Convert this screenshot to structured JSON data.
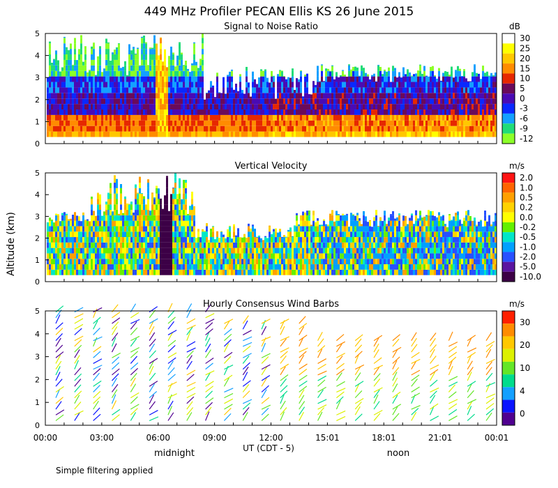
{
  "title": "449 MHz Profiler PECAN Ellis KS 26 June 2015",
  "ylabel": "Altitude (km)",
  "xlabel": "UT  (CDT - 5)",
  "x_ticks": [
    "00:00",
    "03:00",
    "06:00",
    "09:00",
    "12:00",
    "15:01",
    "18:01",
    "21:01",
    "00:01"
  ],
  "local_labels": {
    "midnight": "midnight",
    "noon": "noon"
  },
  "footnote": "Simple filtering applied",
  "chart_data": [
    {
      "type": "heatmap",
      "title": "Signal to Noise Ratio",
      "units": "dB",
      "ylim": [
        0,
        5
      ],
      "y_ticks": [
        "0",
        "1",
        "2",
        "3",
        "4",
        "5"
      ],
      "colorbar": {
        "labels": [
          "30",
          "25",
          "20",
          "15",
          "10",
          "5",
          "0",
          "-3",
          "-6",
          "-9",
          "-12"
        ],
        "colors": [
          "#ffffff",
          "#ffff00",
          "#ffc800",
          "#ff8c00",
          "#e62800",
          "#6a0a5a",
          "#4a0ab4",
          "#0a28ff",
          "#14a0ff",
          "#20dc78",
          "#8cff28"
        ]
      }
    },
    {
      "type": "heatmap",
      "title": "Vertical Velocity",
      "units": "m/s",
      "ylim": [
        0,
        5
      ],
      "y_ticks": [
        "0",
        "1",
        "2",
        "3",
        "4",
        "5"
      ],
      "colorbar": {
        "labels": [
          "2.0",
          "1.0",
          "0.5",
          "0.2",
          "0.0",
          "-0.2",
          "-0.5",
          "-1.0",
          "-2.0",
          "-5.0",
          "-10.0"
        ],
        "colors": [
          "#ff1414",
          "#ff6400",
          "#ffa000",
          "#ffd200",
          "#ffff00",
          "#64f000",
          "#00e6c8",
          "#00a0ff",
          "#2850ff",
          "#5a14a0",
          "#3c0046"
        ]
      }
    },
    {
      "type": "wind_barbs",
      "title": "Hourly Consensus Wind Barbs",
      "units": "m/s",
      "ylim": [
        0,
        5
      ],
      "y_ticks": [
        "0",
        "1",
        "2",
        "3",
        "4",
        "5"
      ],
      "colorbar": {
        "labels": [
          "30",
          "20",
          "10",
          "4",
          "0"
        ],
        "colors": [
          "#ff2000",
          "#ff8c00",
          "#ffc800",
          "#dcf000",
          "#64e628",
          "#00dc8c",
          "#14a0ff",
          "#0a14ff",
          "#500090"
        ]
      }
    }
  ]
}
